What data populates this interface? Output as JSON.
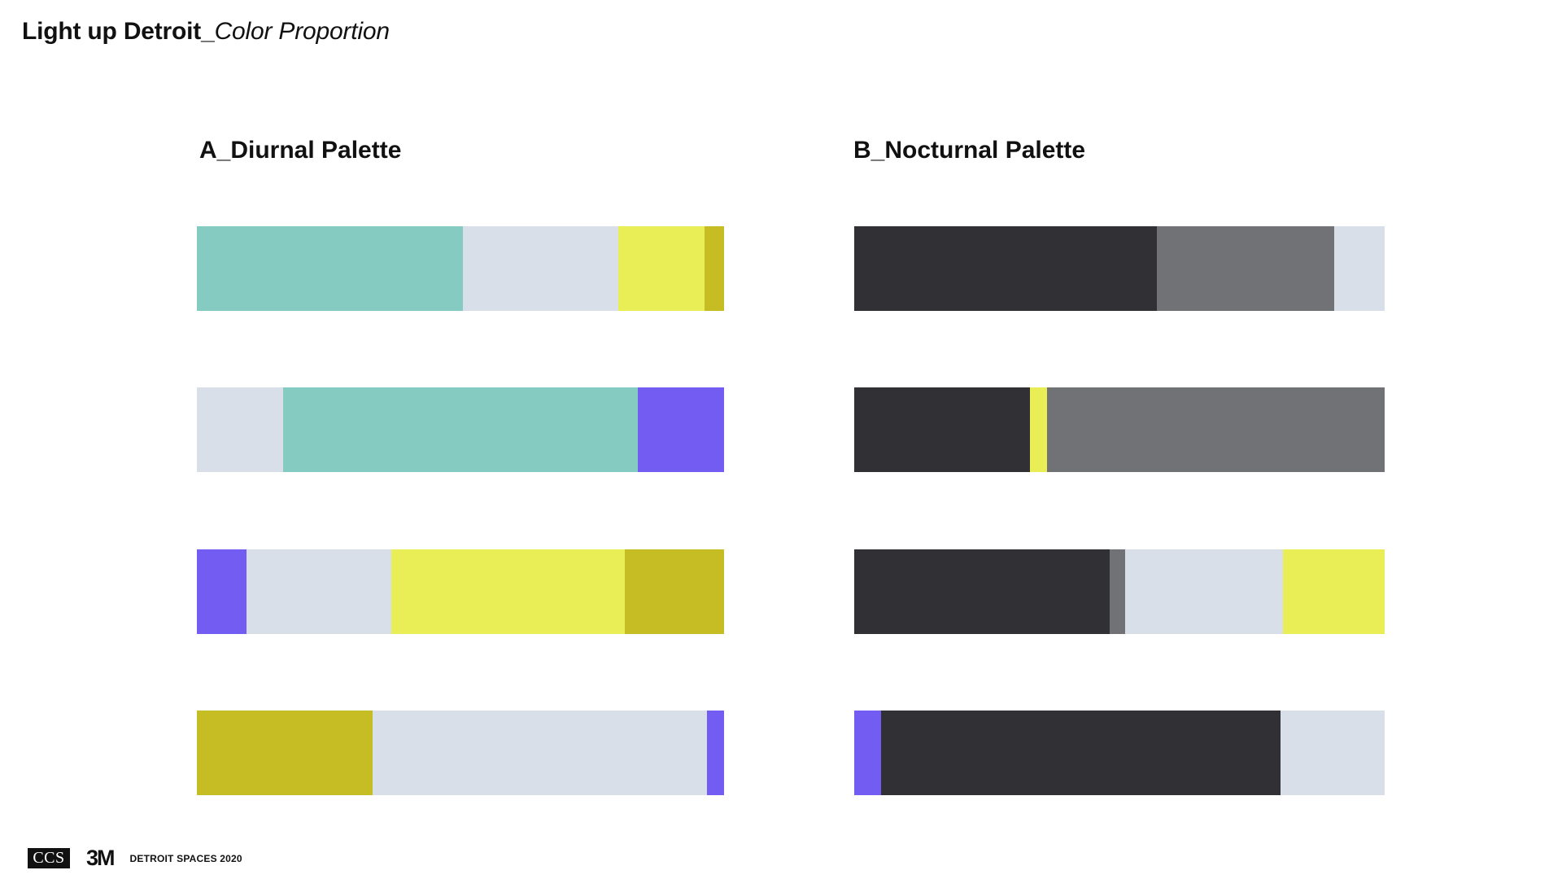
{
  "slide": {
    "title_bold": "Light up Detroit_",
    "title_italic": "Color Proportion"
  },
  "footer": {
    "ccs_logo": "CCS",
    "m3_logo": "3M",
    "text": "DETROIT SPACES 2020"
  },
  "colors": {
    "teal": "#85cbc2",
    "light_gray": "#d9dfe9",
    "yellow": "#e9ee57",
    "olive": "#c6bd24",
    "purple": "#735cf2",
    "charcoal": "#313135",
    "gray": "#717276"
  },
  "chart_data": [
    {
      "type": "bar",
      "title": "A_Diurnal Palette",
      "stacked": true,
      "orientation": "horizontal",
      "rows": [
        {
          "segments": [
            {
              "color": "teal",
              "share": 50.5
            },
            {
              "color": "light_gray",
              "share": 29.5
            },
            {
              "color": "yellow",
              "share": 16.3
            },
            {
              "color": "olive",
              "share": 3.7
            }
          ]
        },
        {
          "segments": [
            {
              "color": "light_gray",
              "share": 16.3
            },
            {
              "color": "teal",
              "share": 67.4
            },
            {
              "color": "purple",
              "share": 16.3
            }
          ]
        },
        {
          "segments": [
            {
              "color": "purple",
              "share": 9.4
            },
            {
              "color": "light_gray",
              "share": 27.5
            },
            {
              "color": "yellow",
              "share": 44.2
            },
            {
              "color": "olive",
              "share": 18.9
            }
          ]
        },
        {
          "segments": [
            {
              "color": "olive",
              "share": 33.3
            },
            {
              "color": "light_gray",
              "share": 63.5
            },
            {
              "color": "purple",
              "share": 3.2
            }
          ]
        }
      ]
    },
    {
      "type": "bar",
      "title": "B_Nocturnal Palette",
      "stacked": true,
      "orientation": "horizontal",
      "rows": [
        {
          "segments": [
            {
              "color": "charcoal",
              "share": 57.0
            },
            {
              "color": "gray",
              "share": 33.5
            },
            {
              "color": "light_gray",
              "share": 9.5
            }
          ]
        },
        {
          "segments": [
            {
              "color": "charcoal",
              "share": 33.2
            },
            {
              "color": "yellow",
              "share": 3.2
            },
            {
              "color": "gray",
              "share": 63.6
            }
          ]
        },
        {
          "segments": [
            {
              "color": "charcoal",
              "share": 48.2
            },
            {
              "color": "gray",
              "share": 2.9
            },
            {
              "color": "light_gray",
              "share": 29.8
            },
            {
              "color": "yellow",
              "share": 19.1
            }
          ]
        },
        {
          "segments": [
            {
              "color": "purple",
              "share": 5.0
            },
            {
              "color": "charcoal",
              "share": 75.3
            },
            {
              "color": "light_gray",
              "share": 19.7
            }
          ]
        }
      ]
    }
  ]
}
